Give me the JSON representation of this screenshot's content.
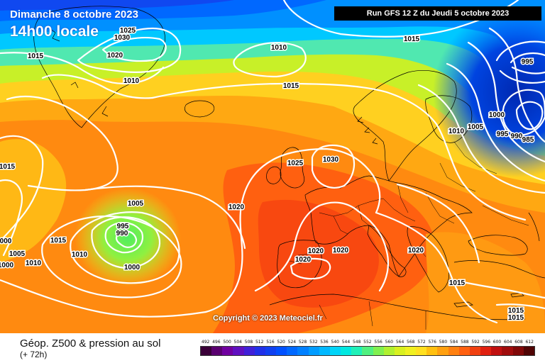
{
  "header": {
    "date": "Dimanche 8 octobre 2023",
    "time": "14h00 locale",
    "run": "Run GFS 12 Z du Jeudi 5 octobre 2023"
  },
  "footer": {
    "product": "Géop. Z500 & pression au sol",
    "step": "(+ 72h)",
    "copyright": "Copyright © 2023 Meteociel.fr"
  },
  "legend": {
    "values": [
      "492",
      "496",
      "500",
      "504",
      "508",
      "512",
      "516",
      "520",
      "524",
      "528",
      "532",
      "536",
      "540",
      "544",
      "548",
      "552",
      "556",
      "560",
      "564",
      "568",
      "572",
      "576",
      "580",
      "584",
      "588",
      "592",
      "596",
      "600",
      "604",
      "608",
      "612"
    ],
    "colors": [
      "#3a0038",
      "#5a0070",
      "#7000a0",
      "#6010c0",
      "#4020d8",
      "#2030e8",
      "#1040f0",
      "#0050ff",
      "#0068ff",
      "#0080ff",
      "#009cff",
      "#00b8ff",
      "#00d4f8",
      "#00e8e0",
      "#20f0b8",
      "#50f080",
      "#80f050",
      "#b0f030",
      "#d8f020",
      "#f0f020",
      "#ffe020",
      "#ffc010",
      "#ffa010",
      "#ff8010",
      "#ff6010",
      "#f04010",
      "#e02010",
      "#c01010",
      "#a00c0c",
      "#800808",
      "#500404"
    ]
  },
  "isobars": [
    {
      "value": "1025"
    },
    {
      "value": "1030"
    },
    {
      "value": "1020"
    },
    {
      "value": "1015"
    },
    {
      "value": "1010"
    },
    {
      "value": "1010"
    },
    {
      "value": "1015"
    },
    {
      "value": "1015"
    },
    {
      "value": "1015"
    },
    {
      "value": "1010"
    },
    {
      "value": "1005"
    },
    {
      "value": "1000"
    },
    {
      "value": "995"
    },
    {
      "value": "990"
    },
    {
      "value": "985"
    },
    {
      "value": "995"
    },
    {
      "value": "1025"
    },
    {
      "value": "1030"
    },
    {
      "value": "1020"
    },
    {
      "value": "1020"
    },
    {
      "value": "1020"
    },
    {
      "value": "1020"
    },
    {
      "value": "1020"
    },
    {
      "value": "1015"
    },
    {
      "value": "1015"
    },
    {
      "value": "1015"
    },
    {
      "value": "1005"
    },
    {
      "value": "995"
    },
    {
      "value": "990"
    },
    {
      "value": "1000"
    },
    {
      "value": "1015"
    },
    {
      "value": "1010"
    },
    {
      "value": "1005"
    },
    {
      "value": "1010"
    },
    {
      "value": "1000"
    },
    {
      "value": "1015"
    },
    {
      "value": "000"
    }
  ]
}
